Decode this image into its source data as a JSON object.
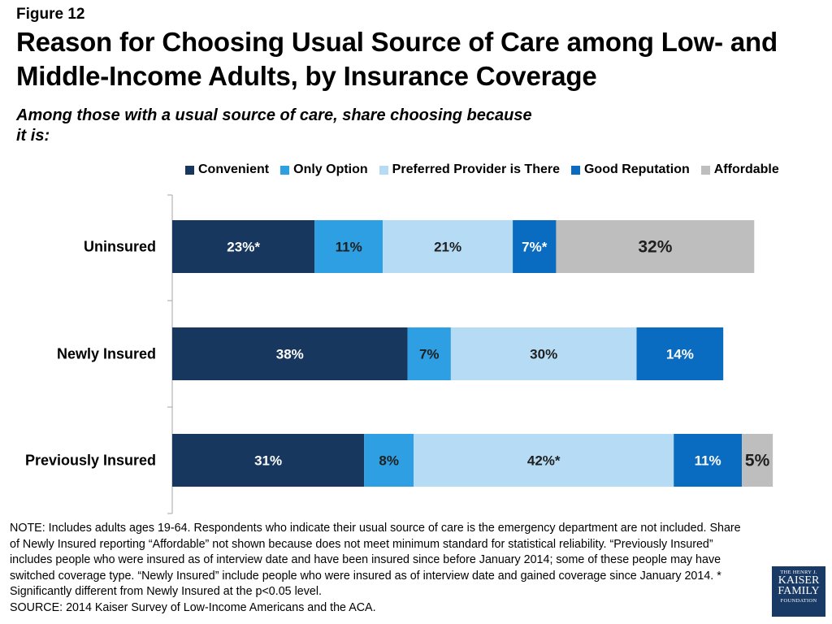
{
  "figure_label": "Figure 12",
  "title": "Reason for Choosing Usual Source of Care among Low- and Middle-Income Adults, by Insurance Coverage",
  "subtitle": "Among those with a usual source of care, share choosing because it is:",
  "colors": {
    "convenient": "#17375e",
    "only_option": "#2e9fe2",
    "preferred": "#b5dcf4",
    "reputation": "#0a6cc0",
    "affordable": "#bebebe",
    "axis": "#a6a6a6"
  },
  "chart_data": {
    "type": "bar",
    "orientation": "horizontal",
    "stacked": true,
    "categories": [
      "Uninsured",
      "Newly Insured",
      "Previously Insured"
    ],
    "series": [
      {
        "name": "Convenient",
        "values": [
          23,
          38,
          31
        ],
        "labels": [
          "23%*",
          "38%",
          "31%"
        ],
        "color": "#17375e",
        "label_color": "#ffffff"
      },
      {
        "name": "Only Option",
        "values": [
          11,
          7,
          8
        ],
        "labels": [
          "11%",
          "7%",
          "8%"
        ],
        "color": "#2e9fe2",
        "label_color": "#1f1f1f"
      },
      {
        "name": "Preferred Provider is There",
        "values": [
          21,
          30,
          42
        ],
        "labels": [
          "21%",
          "30%",
          "42%*"
        ],
        "color": "#b5dcf4",
        "label_color": "#1f1f1f"
      },
      {
        "name": "Good Reputation",
        "values": [
          7,
          14,
          11
        ],
        "labels": [
          "7%*",
          "14%",
          "11%"
        ],
        "color": "#0a6cc0",
        "label_color": "#ffffff"
      },
      {
        "name": "Affordable",
        "values": [
          32,
          null,
          5
        ],
        "labels": [
          "32%",
          "",
          "5%"
        ],
        "color": "#bebebe",
        "label_color": "#1f1f1f"
      }
    ],
    "legend": "top",
    "grid": false
  },
  "note": "NOTE: Includes adults ages 19-64. Respondents who indicate their usual source of care is the emergency department are not included. Share of Newly Insured reporting “Affordable” not shown because does not meet minimum standard for statistical reliability. “Previously Insured” includes people who were insured as of interview date and have been insured since before January 2014; some of these people may have switched coverage type. “Newly Insured” include people who were insured as of interview date and gained coverage since January 2014. * Significantly different from Newly Insured at the p<0.05 level.",
  "source": "SOURCE: 2014 Kaiser Survey of Low-Income Americans and the ACA.",
  "logo": {
    "line1": "THE HENRY J.",
    "line2": "KAISER",
    "line3": "FAMILY",
    "line4": "FOUNDATION"
  }
}
